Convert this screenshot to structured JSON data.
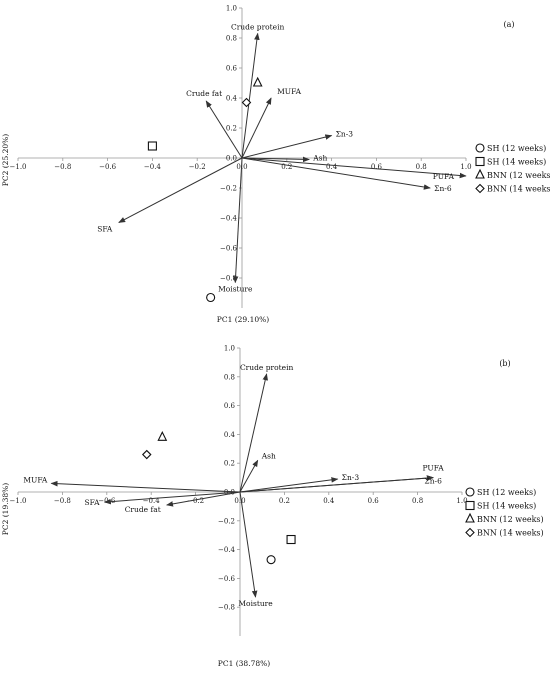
{
  "chart_data": [
    {
      "type": "scatter",
      "panel_label": "(a)",
      "xlabel": "PC1 (29.10%)",
      "ylabel": "PC2 (25.20%)",
      "xlim": [
        -1.0,
        1.0
      ],
      "ylim": [
        -1.0,
        1.0
      ],
      "x_ticks": [
        "−1.0",
        "−0.8",
        "−0.6",
        "−0.4",
        "−0.2",
        "0.0",
        "0.2",
        "0.4",
        "0.6",
        "0.8",
        "1.0"
      ],
      "y_ticks": [
        "1.0",
        "0.8",
        "0.6",
        "0.4",
        "0.2",
        "0.0",
        "−0.2",
        "−0.4",
        "−0.6",
        "−0.8"
      ],
      "grid": false,
      "legend_position": "right",
      "loadings": [
        {
          "label": "Crude protein",
          "x": 0.07,
          "y": 0.83
        },
        {
          "label": "MUFA",
          "x": 0.13,
          "y": 0.4
        },
        {
          "label": "Crude fat",
          "x": -0.16,
          "y": 0.38
        },
        {
          "label": "Σn-3",
          "x": 0.4,
          "y": 0.15
        },
        {
          "label": "Ash",
          "x": 0.3,
          "y": -0.01
        },
        {
          "label": "PUFA",
          "x": 1.0,
          "y": -0.12
        },
        {
          "label": "Σn-6",
          "x": 0.84,
          "y": -0.2
        },
        {
          "label": "SFA",
          "x": -0.55,
          "y": -0.43
        },
        {
          "label": "Moisture",
          "x": -0.03,
          "y": -0.83
        }
      ],
      "series": [
        {
          "name": "SH (12 weeks)",
          "marker": "circle",
          "x": -0.14,
          "y": -0.93
        },
        {
          "name": "SH (14 weeks)",
          "marker": "square",
          "x": -0.4,
          "y": 0.08
        },
        {
          "name": "BNN (12 weeks)",
          "marker": "triangle",
          "x": 0.07,
          "y": 0.5
        },
        {
          "name": "BNN (14 weeks)",
          "marker": "diamond",
          "x": 0.02,
          "y": 0.37
        }
      ]
    },
    {
      "type": "scatter",
      "panel_label": "(b)",
      "xlabel": "PC1 (38.78%)",
      "ylabel": "PC2 (19.38%)",
      "xlim": [
        -1.0,
        1.0
      ],
      "ylim": [
        -1.0,
        1.0
      ],
      "x_ticks": [
        "−1.0",
        "−0.8",
        "−0.6",
        "−0.4",
        "−0.2",
        "0.0",
        "0.2",
        "0.4",
        "0.6",
        "0.8",
        "1.0"
      ],
      "y_ticks": [
        "1.0",
        "0.8",
        "0.6",
        "0.4",
        "0.2",
        "0.0",
        "−0.2",
        "−0.4",
        "−0.6",
        "−0.8"
      ],
      "grid": false,
      "legend_position": "right",
      "loadings": [
        {
          "label": "Crude protein",
          "x": 0.12,
          "y": 0.82
        },
        {
          "label": "Ash",
          "x": 0.08,
          "y": 0.22
        },
        {
          "label": "Σn-3",
          "x": 0.44,
          "y": 0.09
        },
        {
          "label": "PUFA",
          "x": 0.87,
          "y": 0.1
        },
        {
          "label": "Σn-6",
          "x": 0.87,
          "y": 0.1
        },
        {
          "label": "MUFA",
          "x": -0.85,
          "y": 0.06
        },
        {
          "label": "SFA",
          "x": -0.61,
          "y": -0.07
        },
        {
          "label": "Crude fat",
          "x": -0.33,
          "y": -0.09
        },
        {
          "label": "Moisture",
          "x": 0.07,
          "y": -0.73
        }
      ],
      "series": [
        {
          "name": "SH (12 weeks)",
          "marker": "circle",
          "x": 0.14,
          "y": -0.47
        },
        {
          "name": "SH (14 weeks)",
          "marker": "square",
          "x": 0.23,
          "y": -0.33
        },
        {
          "name": "BNN (12 weeks)",
          "marker": "triangle",
          "x": -0.35,
          "y": 0.38
        },
        {
          "name": "BNN (14 weeks)",
          "marker": "diamond",
          "x": -0.42,
          "y": 0.26
        }
      ]
    }
  ]
}
